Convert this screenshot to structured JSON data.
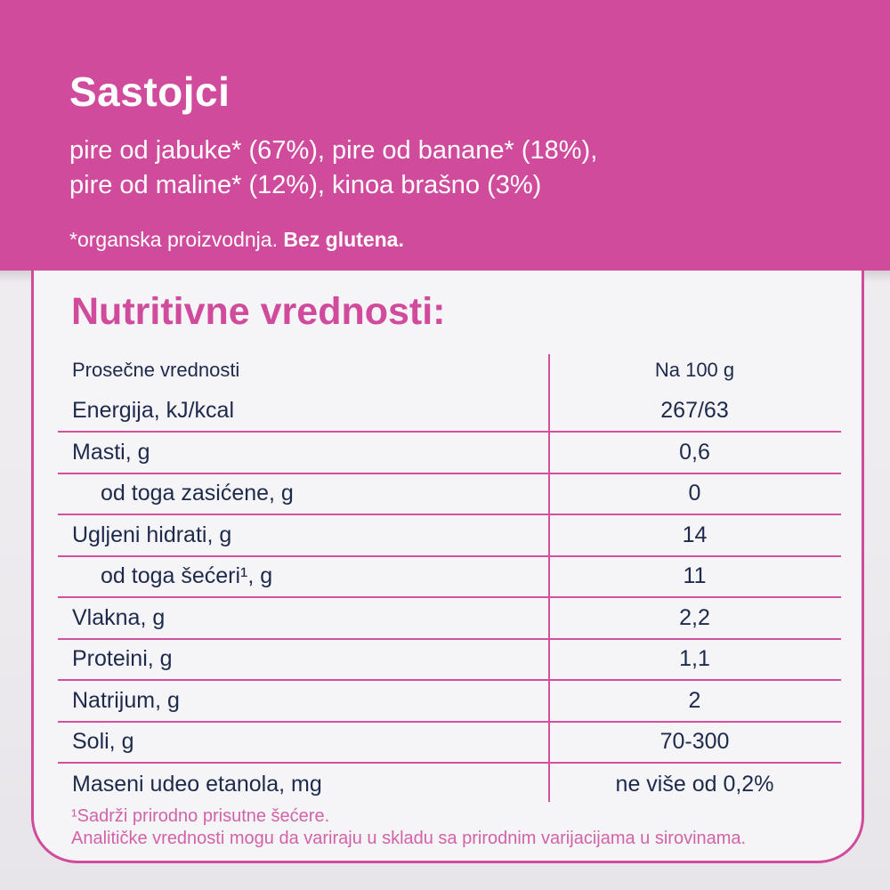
{
  "colors": {
    "pink": "#d14b9d",
    "pink_line": "#d4509f",
    "pink_soft": "#d263a8",
    "navy": "#1e2a4c",
    "card_bg": "#f5f4f7",
    "page_bg": "#edebee"
  },
  "ingredients": {
    "title": "Sastojci",
    "line1": "pire od jabuke* (67%), pire od banane* (18%),",
    "line2": "pire od maline* (12%), kinoa brašno (3%)",
    "note": "*organska proizvodnja. ",
    "note_bold": "Bez glutena."
  },
  "nutrition": {
    "title": "Nutritivne vrednosti:",
    "header": {
      "label": "Prosečne vrednosti",
      "value": "Na 100 g"
    },
    "rows": [
      {
        "label": "Energija, kJ/kcal",
        "value": "267/63",
        "indent": false
      },
      {
        "label": "Masti, g",
        "value": "0,6",
        "indent": false
      },
      {
        "label": "od toga zasićene, g",
        "value": "0",
        "indent": true
      },
      {
        "label": "Ugljeni hidrati, g",
        "value": "14",
        "indent": false
      },
      {
        "label": "od toga šećeri¹, g",
        "value": "11",
        "indent": true
      },
      {
        "label": "Vlakna, g",
        "value": "2,2",
        "indent": false
      },
      {
        "label": "Proteini, g",
        "value": "1,1",
        "indent": false
      },
      {
        "label": "Natrijum, g",
        "value": "2",
        "indent": false
      },
      {
        "label": "Soli, g",
        "value": "70-300",
        "indent": false
      },
      {
        "label": "Maseni udeo etanola, mg",
        "value": "ne više od 0,2%",
        "indent": false
      }
    ],
    "footnotes": [
      "¹Sadrži prirodno prisutne šećere.",
      "Analitičke vrednosti mogu da variraju u skladu sa prirodnim varijacijama u sirovinama."
    ]
  }
}
